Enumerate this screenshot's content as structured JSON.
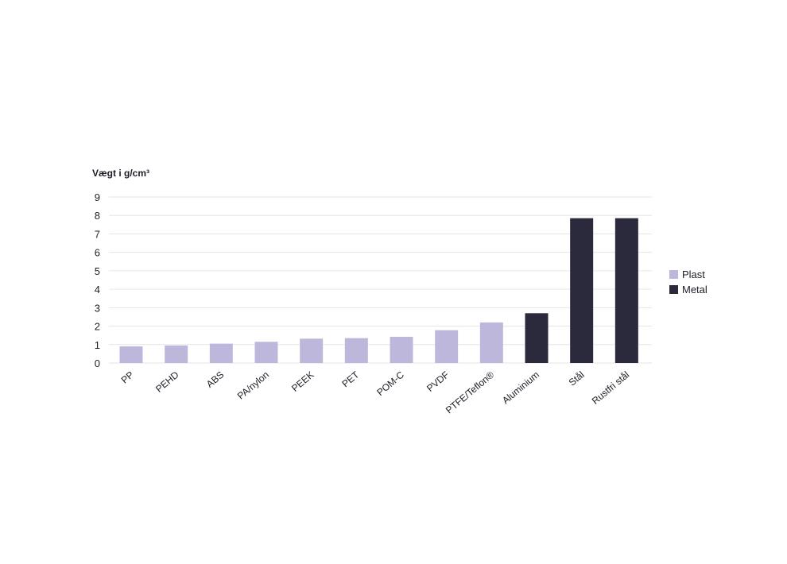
{
  "chart_data": {
    "type": "bar",
    "ylabel": "Vægt i g/cm³",
    "xlabel": "",
    "ylim": [
      0,
      9
    ],
    "yticks": [
      0,
      1,
      2,
      3,
      4,
      5,
      6,
      7,
      8,
      9
    ],
    "grid": true,
    "legend_position": "right",
    "categories": [
      "PP",
      "PEHD",
      "ABS",
      "PA/nylon",
      "PEEK",
      "PET",
      "POM-C",
      "PVDF",
      "PTFE/Teflon®",
      "Aluminium",
      "Stål",
      "Rustfri stål"
    ],
    "values": [
      0.9,
      0.95,
      1.05,
      1.15,
      1.32,
      1.35,
      1.42,
      1.78,
      2.2,
      2.7,
      7.85,
      7.85
    ],
    "groups": [
      "Plast",
      "Plast",
      "Plast",
      "Plast",
      "Plast",
      "Plast",
      "Plast",
      "Plast",
      "Plast",
      "Metal",
      "Metal",
      "Metal"
    ],
    "legend": [
      {
        "name": "Plast",
        "color": "#bdb8db"
      },
      {
        "name": "Metal",
        "color": "#2b2a3d"
      }
    ]
  }
}
